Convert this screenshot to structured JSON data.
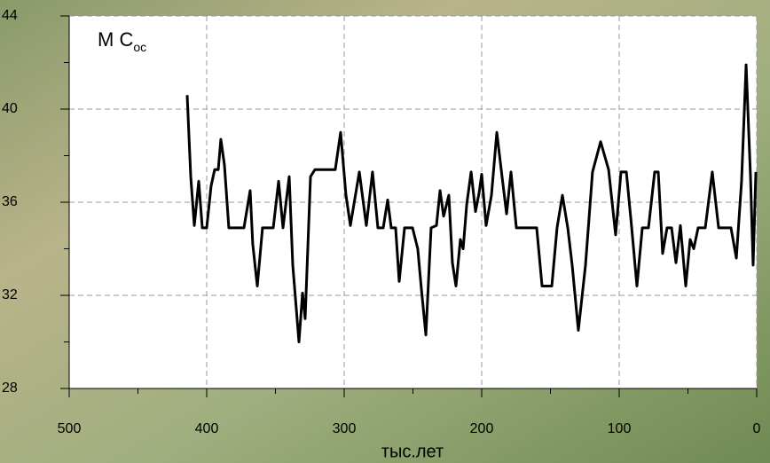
{
  "chart_data": {
    "type": "line",
    "title": "M C",
    "title_subscript": "oc",
    "x_label": "тыс.лет",
    "xlim": [
      500,
      0
    ],
    "xticks": [
      500,
      400,
      300,
      200,
      100,
      0
    ],
    "x_minor_ticks": [
      450,
      350,
      250,
      150,
      50
    ],
    "ylim": [
      28,
      44
    ],
    "yticks": [
      28,
      32,
      36,
      40,
      44
    ],
    "y_minor_ticks": [
      30,
      34,
      38,
      42
    ],
    "grid": true,
    "series": [
      {
        "color": "#000000",
        "x": [
          414.2,
          411.6,
          409,
          405.8,
          403.2,
          400,
          396.8,
          394.2,
          391.6,
          389.7,
          387.1,
          383.9,
          372.9,
          368.4,
          366.5,
          363.2,
          359.4,
          351.6,
          347.7,
          344.5,
          340,
          337.4,
          332.9,
          330.3,
          328.4,
          324.5,
          321.3,
          306.5,
          302.6,
          298.7,
          295.5,
          289,
          283.9,
          279.4,
          275.5,
          271.6,
          268.4,
          265.8,
          262.6,
          260,
          256.1,
          250.3,
          246.5,
          243.9,
          240.6,
          236.8,
          232.9,
          230.3,
          227.7,
          223.9,
          221.3,
          218.7,
          215.5,
          213.5,
          210.9,
          207.7,
          204.5,
          201.9,
          200,
          196.8,
          192.9,
          189,
          185.2,
          181.9,
          178.7,
          174.8,
          160,
          156.1,
          149,
          145.2,
          141.3,
          137.4,
          134.2,
          129.7,
          124.5,
          119.4,
          113.5,
          107.7,
          102.6,
          98.7,
          94.8,
          90.9,
          87.1,
          83.2,
          78.7,
          74.2,
          71.6,
          68.4,
          65.2,
          61.9,
          58.7,
          55.5,
          51.6,
          48.4,
          45.8,
          42.6,
          37.4,
          32.3,
          27.7,
          18.7,
          14.8,
          11,
          7.7,
          4.5,
          2.6,
          0.6
        ],
        "values": [
          40.6,
          37.1,
          35.0,
          36.9,
          34.9,
          34.9,
          36.7,
          37.4,
          37.4,
          38.7,
          37.6,
          34.9,
          34.9,
          36.5,
          34.2,
          32.4,
          34.9,
          34.9,
          36.9,
          34.9,
          37.1,
          33.3,
          30.0,
          32.1,
          31.0,
          37.1,
          37.4,
          37.4,
          39.0,
          36.3,
          35.0,
          37.3,
          35.0,
          37.3,
          34.9,
          34.9,
          36.1,
          34.9,
          34.9,
          32.6,
          34.9,
          34.9,
          34.0,
          32.3,
          30.3,
          34.9,
          35.0,
          36.5,
          35.4,
          36.3,
          33.4,
          32.4,
          34.4,
          34.0,
          35.9,
          37.3,
          35.6,
          36.4,
          37.2,
          35.0,
          36.3,
          39.0,
          37.1,
          35.5,
          37.3,
          34.9,
          34.9,
          32.4,
          32.4,
          34.9,
          36.3,
          34.9,
          33.3,
          30.5,
          33.3,
          37.3,
          38.6,
          37.4,
          34.6,
          37.3,
          37.3,
          34.9,
          32.4,
          34.9,
          34.9,
          37.3,
          37.3,
          33.8,
          34.9,
          34.9,
          33.4,
          35.0,
          32.4,
          34.4,
          34.0,
          34.9,
          34.9,
          37.3,
          34.9,
          34.9,
          33.6,
          36.9,
          41.9,
          37.1,
          33.3,
          37.3
        ]
      }
    ]
  }
}
